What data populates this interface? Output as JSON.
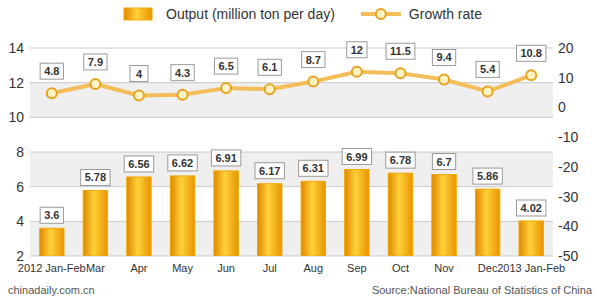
{
  "chart_data": {
    "type": "bar",
    "categories": [
      "2012 Jan-Feb",
      "Mar",
      "Apr",
      "May",
      "Jun",
      "Jul",
      "Aug",
      "Sep",
      "Oct",
      "Nov",
      "Dec",
      "2013 Jan-Feb"
    ],
    "series": [
      {
        "name": "Output (million ton per day)",
        "type": "bar",
        "color": "#f2a900",
        "values": [
          3.6,
          5.78,
          6.56,
          6.62,
          6.91,
          6.17,
          6.31,
          6.99,
          6.78,
          6.7,
          5.86,
          4.02
        ]
      },
      {
        "name": "Growth rate",
        "type": "line",
        "axis": "y2",
        "color": "#f3be5a",
        "marker": "circle",
        "values": [
          4.8,
          7.9,
          4,
          4.3,
          6.5,
          6.1,
          8.7,
          12,
          11.5,
          9.4,
          5.4,
          10.8
        ]
      }
    ],
    "ylim": [
      2,
      14
    ],
    "yticks": [
      2,
      4,
      6,
      8,
      10,
      12,
      14
    ],
    "y2lim": [
      -50,
      20
    ],
    "y2ticks": [
      -50,
      -40,
      -30,
      -20,
      -10,
      0,
      10,
      20
    ],
    "grid": true,
    "legend": "top",
    "data_labels": true,
    "annotations": [
      "chinadaily.com.cn",
      "Source:National Bureau of Statistics of China"
    ]
  }
}
